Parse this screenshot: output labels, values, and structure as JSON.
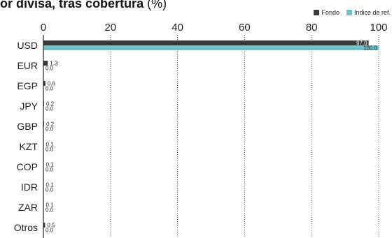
{
  "title": {
    "main": "or divisa, tras cobertura",
    "unit": " (%)"
  },
  "colors": {
    "fondo": "#3a3a3a",
    "indice": "#6cc4cc"
  },
  "chart_data": {
    "type": "bar",
    "orientation": "horizontal",
    "title": "or divisa, tras cobertura (%)",
    "categories": [
      "USD",
      "EUR",
      "EGP",
      "JPY",
      "GBP",
      "KZT",
      "COP",
      "IDR",
      "ZAR",
      "Otros"
    ],
    "series": [
      {
        "name": "Fondo",
        "values": [
          97.0,
          1.3,
          0.6,
          0.2,
          0.2,
          0.1,
          0.1,
          0.1,
          0.1,
          0.5
        ]
      },
      {
        "name": "Indice de ref.",
        "values": [
          100.0,
          0.0,
          0.0,
          0.0,
          0.0,
          0.0,
          0.0,
          0.0,
          0.0,
          0.0
        ]
      }
    ],
    "xlim": [
      0,
      100
    ],
    "ticks": [
      0,
      20,
      40,
      60,
      80,
      100
    ],
    "data_labels": {
      "series0": [
        "97.0",
        "1.3",
        "0.6",
        "0.2",
        "0.2",
        "0.1",
        "0.1",
        "0.1",
        "0.1",
        "0.5"
      ],
      "series1": [
        "100.0",
        "0.0",
        "0.0",
        "0.0",
        "0.0",
        "0.0",
        "0.0",
        "0.0",
        "0.0",
        "0.0"
      ]
    },
    "grid": "vertical dotted",
    "legend_position": "top-right"
  }
}
